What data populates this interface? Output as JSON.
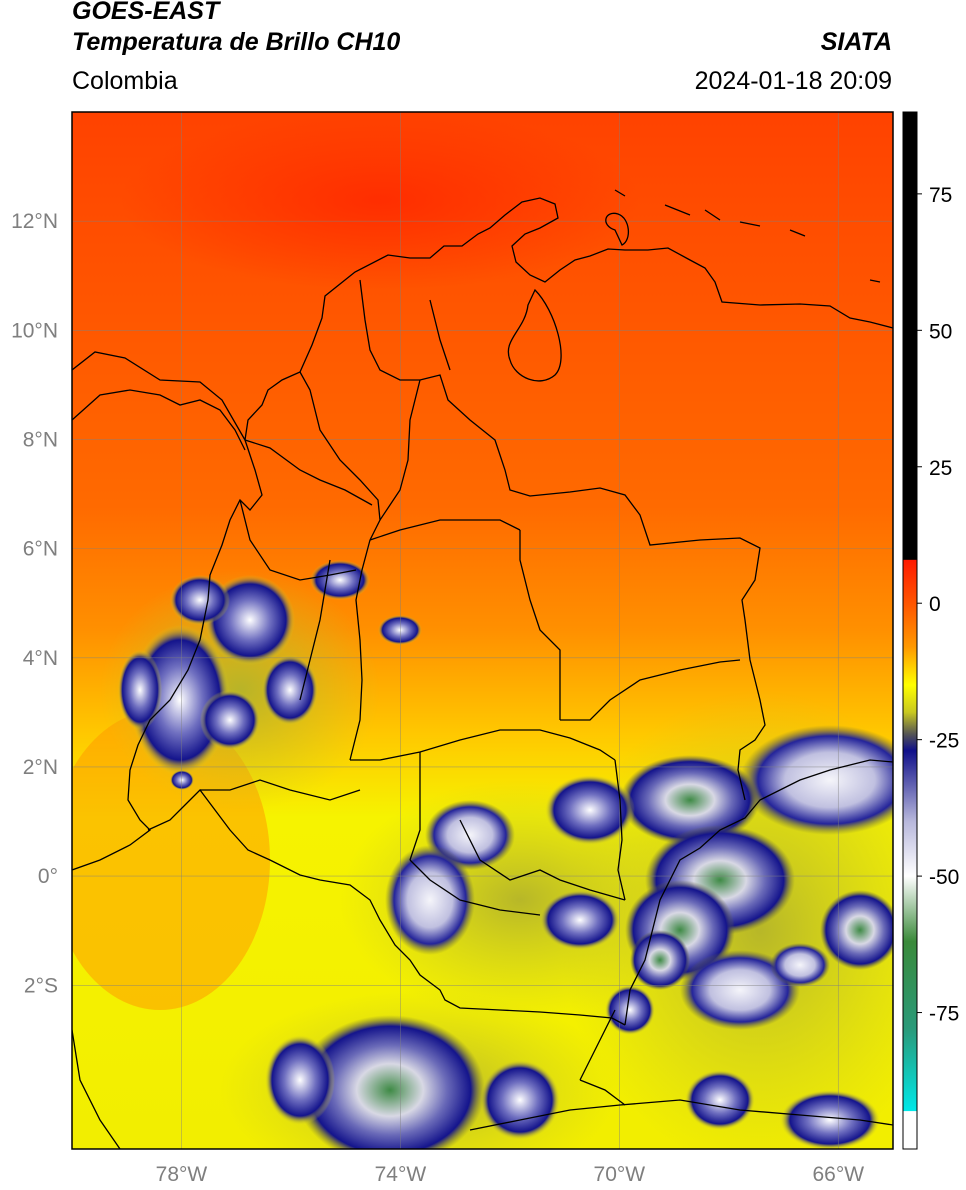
{
  "header": {
    "satellite": "GOES-EAST",
    "product": "Temperatura de Brillo CH10",
    "region": "Colombia",
    "agency": "SIATA",
    "datetime": "2024-01-18 20:09"
  },
  "map": {
    "projection": "PlateCarree",
    "extent": {
      "lon_min": -80,
      "lon_max": -65,
      "lat_min": -5,
      "lat_max": 14
    },
    "lon_ticks": [
      {
        "value": -78,
        "label": "78°W"
      },
      {
        "value": -74,
        "label": "74°W"
      },
      {
        "value": -70,
        "label": "70°W"
      },
      {
        "value": -66,
        "label": "66°W"
      }
    ],
    "lat_ticks": [
      {
        "value": 12,
        "label": "12°N"
      },
      {
        "value": 10,
        "label": "10°N"
      },
      {
        "value": 8,
        "label": "8°N"
      },
      {
        "value": 6,
        "label": "6°N"
      },
      {
        "value": 4,
        "label": "4°N"
      },
      {
        "value": 2,
        "label": "2°N"
      },
      {
        "value": 0,
        "label": "0°"
      },
      {
        "value": -2,
        "label": "2°S"
      }
    ],
    "grid": true
  },
  "colorbar": {
    "range": [
      -100,
      90
    ],
    "ticks": [
      {
        "value": 75,
        "label": "75"
      },
      {
        "value": 50,
        "label": "50"
      },
      {
        "value": 25,
        "label": "25"
      },
      {
        "value": 0,
        "label": "0"
      },
      {
        "value": -25,
        "label": "-25"
      },
      {
        "value": -50,
        "label": "-50"
      },
      {
        "value": -75,
        "label": "-75"
      }
    ],
    "stops": [
      {
        "value": 90,
        "color": "#000000"
      },
      {
        "value": 8,
        "color": "#000000"
      },
      {
        "value": 7.9,
        "color": "#ff1a00"
      },
      {
        "value": 0,
        "color": "#ff5500"
      },
      {
        "value": -8,
        "color": "#ff9900"
      },
      {
        "value": -15,
        "color": "#ffff00"
      },
      {
        "value": -20,
        "color": "#c8c820"
      },
      {
        "value": -24,
        "color": "#555555"
      },
      {
        "value": -27,
        "color": "#10108a"
      },
      {
        "value": -40,
        "color": "#b8b8dc"
      },
      {
        "value": -50,
        "color": "#ffffff"
      },
      {
        "value": -62,
        "color": "#3a8a3a"
      },
      {
        "value": -78,
        "color": "#2a9a7a"
      },
      {
        "value": -93,
        "color": "#00e8e8"
      },
      {
        "value": -93.1,
        "color": "#ffffff"
      },
      {
        "value": -100,
        "color": "#ffffff"
      }
    ],
    "colors": {
      "warm": "#ff4a00",
      "mid": "#ff9d00",
      "yellow": "#f5f500",
      "olive": "#b9b92a",
      "cold_blue": "#14148c",
      "white": "#f2f2f7",
      "green": "#3f8f45"
    }
  }
}
